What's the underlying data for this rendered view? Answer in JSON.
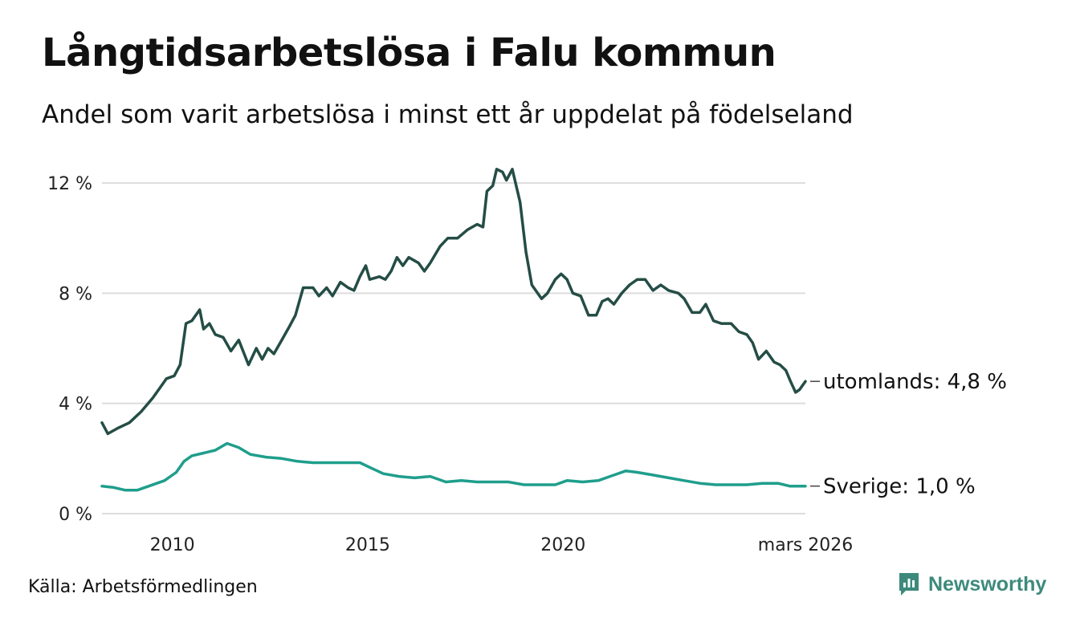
{
  "header": {
    "title": "Långtidsarbetslösa i Falu kommun",
    "subtitle": "Andel som varit arbetslösa i minst ett år uppdelat på födelseland"
  },
  "footer": {
    "source": "Källa: Arbetsförmedlingen",
    "brand": "Newsworthy"
  },
  "colors": {
    "utomlands": "#244d45",
    "sverige": "#1f9e8c",
    "grid": "#dddddd",
    "brand": "#3d8a7c"
  },
  "chart_data": {
    "type": "line",
    "title": "Långtidsarbetslösa i Falu kommun",
    "subtitle": "Andel som varit arbetslösa i minst ett år uppdelat på födelseland",
    "xlabel": "",
    "ylabel": "",
    "x_range": [
      2008.2,
      2026.2
    ],
    "ylim": [
      0,
      12
    ],
    "y_ticks": [
      {
        "value": 0,
        "label": "0 %"
      },
      {
        "value": 4,
        "label": "4 %"
      },
      {
        "value": 8,
        "label": "8 %"
      },
      {
        "value": 12,
        "label": "12 %"
      }
    ],
    "x_ticks": [
      {
        "value": 2010,
        "label": "2010"
      },
      {
        "value": 2015,
        "label": "2015"
      },
      {
        "value": 2020,
        "label": "2020"
      },
      {
        "value": 2026.2,
        "label": "mars 2026"
      }
    ],
    "grid": true,
    "series": [
      {
        "name": "utomlands",
        "end_label": "utomlands: 4,8 %",
        "color": "#244d45",
        "points": [
          [
            2008.2,
            3.3
          ],
          [
            2008.35,
            2.9
          ],
          [
            2008.6,
            3.1
          ],
          [
            2008.9,
            3.3
          ],
          [
            2009.2,
            3.7
          ],
          [
            2009.5,
            4.2
          ],
          [
            2009.7,
            4.6
          ],
          [
            2009.85,
            4.9
          ],
          [
            2010.05,
            5.0
          ],
          [
            2010.2,
            5.4
          ],
          [
            2010.35,
            6.9
          ],
          [
            2010.5,
            7.0
          ],
          [
            2010.7,
            7.4
          ],
          [
            2010.8,
            6.7
          ],
          [
            2010.95,
            6.9
          ],
          [
            2011.1,
            6.5
          ],
          [
            2011.3,
            6.4
          ],
          [
            2011.5,
            5.9
          ],
          [
            2011.7,
            6.3
          ],
          [
            2011.95,
            5.4
          ],
          [
            2012.15,
            6.0
          ],
          [
            2012.3,
            5.6
          ],
          [
            2012.45,
            6.0
          ],
          [
            2012.6,
            5.8
          ],
          [
            2012.8,
            6.3
          ],
          [
            2013.0,
            6.8
          ],
          [
            2013.15,
            7.2
          ],
          [
            2013.35,
            8.2
          ],
          [
            2013.6,
            8.2
          ],
          [
            2013.75,
            7.9
          ],
          [
            2013.95,
            8.2
          ],
          [
            2014.1,
            7.9
          ],
          [
            2014.3,
            8.4
          ],
          [
            2014.5,
            8.2
          ],
          [
            2014.65,
            8.1
          ],
          [
            2014.8,
            8.6
          ],
          [
            2014.95,
            9.0
          ],
          [
            2015.05,
            8.5
          ],
          [
            2015.3,
            8.6
          ],
          [
            2015.45,
            8.5
          ],
          [
            2015.6,
            8.8
          ],
          [
            2015.75,
            9.3
          ],
          [
            2015.9,
            9.0
          ],
          [
            2016.05,
            9.3
          ],
          [
            2016.3,
            9.1
          ],
          [
            2016.45,
            8.8
          ],
          [
            2016.6,
            9.1
          ],
          [
            2016.85,
            9.7
          ],
          [
            2017.05,
            10.0
          ],
          [
            2017.3,
            10.0
          ],
          [
            2017.55,
            10.3
          ],
          [
            2017.8,
            10.5
          ],
          [
            2017.95,
            10.4
          ],
          [
            2018.05,
            11.7
          ],
          [
            2018.2,
            11.9
          ],
          [
            2018.3,
            12.5
          ],
          [
            2018.45,
            12.4
          ],
          [
            2018.55,
            12.1
          ],
          [
            2018.7,
            12.5
          ],
          [
            2018.9,
            11.3
          ],
          [
            2019.05,
            9.5
          ],
          [
            2019.2,
            8.3
          ],
          [
            2019.45,
            7.8
          ],
          [
            2019.6,
            8.0
          ],
          [
            2019.8,
            8.5
          ],
          [
            2019.95,
            8.7
          ],
          [
            2020.1,
            8.5
          ],
          [
            2020.25,
            8.0
          ],
          [
            2020.45,
            7.9
          ],
          [
            2020.65,
            7.2
          ],
          [
            2020.85,
            7.2
          ],
          [
            2021.0,
            7.7
          ],
          [
            2021.15,
            7.8
          ],
          [
            2021.3,
            7.6
          ],
          [
            2021.5,
            8.0
          ],
          [
            2021.7,
            8.3
          ],
          [
            2021.9,
            8.5
          ],
          [
            2022.1,
            8.5
          ],
          [
            2022.3,
            8.1
          ],
          [
            2022.5,
            8.3
          ],
          [
            2022.7,
            8.1
          ],
          [
            2022.95,
            8.0
          ],
          [
            2023.1,
            7.8
          ],
          [
            2023.3,
            7.3
          ],
          [
            2023.5,
            7.3
          ],
          [
            2023.65,
            7.6
          ],
          [
            2023.85,
            7.0
          ],
          [
            2024.05,
            6.9
          ],
          [
            2024.3,
            6.9
          ],
          [
            2024.5,
            6.6
          ],
          [
            2024.7,
            6.5
          ],
          [
            2024.85,
            6.2
          ],
          [
            2025.0,
            5.6
          ],
          [
            2025.2,
            5.9
          ],
          [
            2025.4,
            5.5
          ],
          [
            2025.55,
            5.4
          ],
          [
            2025.7,
            5.2
          ],
          [
            2025.82,
            4.8
          ],
          [
            2025.95,
            4.4
          ],
          [
            2026.05,
            4.5
          ],
          [
            2026.2,
            4.8
          ]
        ]
      },
      {
        "name": "Sverige",
        "end_label": "Sverige: 1,0 %",
        "color": "#1f9e8c",
        "points": [
          [
            2008.2,
            1.0
          ],
          [
            2008.5,
            0.95
          ],
          [
            2008.8,
            0.85
          ],
          [
            2009.1,
            0.85
          ],
          [
            2009.4,
            1.0
          ],
          [
            2009.8,
            1.2
          ],
          [
            2010.1,
            1.5
          ],
          [
            2010.3,
            1.9
          ],
          [
            2010.5,
            2.1
          ],
          [
            2010.8,
            2.2
          ],
          [
            2011.1,
            2.3
          ],
          [
            2011.4,
            2.55
          ],
          [
            2011.7,
            2.4
          ],
          [
            2012.0,
            2.15
          ],
          [
            2012.4,
            2.05
          ],
          [
            2012.8,
            2.0
          ],
          [
            2013.2,
            1.9
          ],
          [
            2013.6,
            1.85
          ],
          [
            2014.0,
            1.85
          ],
          [
            2014.4,
            1.85
          ],
          [
            2014.8,
            1.85
          ],
          [
            2015.1,
            1.65
          ],
          [
            2015.4,
            1.45
          ],
          [
            2015.8,
            1.35
          ],
          [
            2016.2,
            1.3
          ],
          [
            2016.6,
            1.35
          ],
          [
            2017.0,
            1.15
          ],
          [
            2017.4,
            1.2
          ],
          [
            2017.8,
            1.15
          ],
          [
            2018.2,
            1.15
          ],
          [
            2018.6,
            1.15
          ],
          [
            2019.0,
            1.05
          ],
          [
            2019.4,
            1.05
          ],
          [
            2019.8,
            1.05
          ],
          [
            2020.1,
            1.2
          ],
          [
            2020.5,
            1.15
          ],
          [
            2020.9,
            1.2
          ],
          [
            2021.2,
            1.35
          ],
          [
            2021.6,
            1.55
          ],
          [
            2021.9,
            1.5
          ],
          [
            2022.3,
            1.4
          ],
          [
            2022.7,
            1.3
          ],
          [
            2023.1,
            1.2
          ],
          [
            2023.5,
            1.1
          ],
          [
            2023.9,
            1.05
          ],
          [
            2024.3,
            1.05
          ],
          [
            2024.7,
            1.05
          ],
          [
            2025.1,
            1.1
          ],
          [
            2025.5,
            1.1
          ],
          [
            2025.8,
            1.0
          ],
          [
            2026.2,
            1.0
          ]
        ]
      }
    ]
  }
}
